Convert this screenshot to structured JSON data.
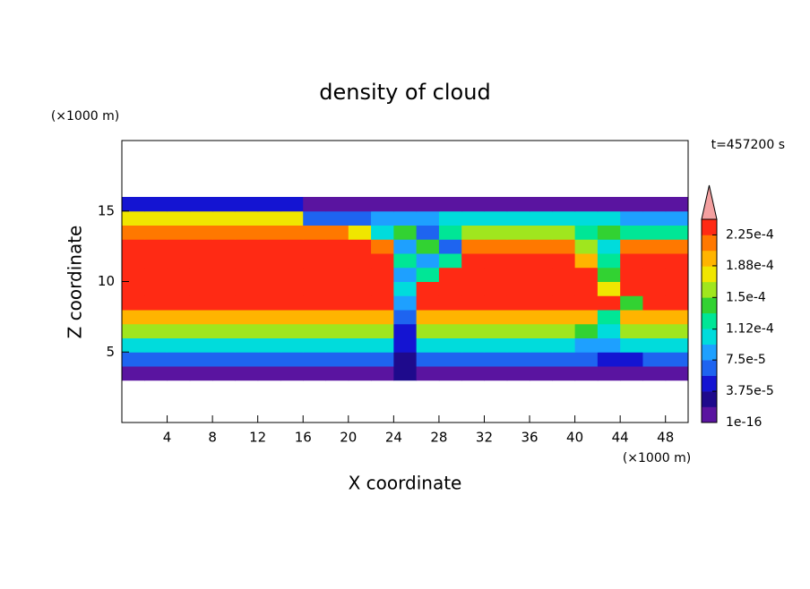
{
  "chart_data": {
    "type": "contour",
    "title": "density of cloud",
    "x_label": "X coordinate",
    "y_label": "Z coordinate",
    "x_unit": "(×1000 m)",
    "y_unit": "(×1000 m)",
    "time_label": "t=457200 s",
    "xlim": [
      0,
      50
    ],
    "ylim": [
      0,
      20
    ],
    "xticks": [
      4,
      8,
      12,
      16,
      20,
      24,
      28,
      32,
      36,
      40,
      44,
      48
    ],
    "yticks": [
      5,
      10,
      15
    ],
    "xbins": [
      0,
      2,
      4,
      6,
      8,
      10,
      12,
      14,
      16,
      18,
      20,
      22,
      24,
      26,
      28,
      30,
      32,
      34,
      36,
      38,
      40,
      42,
      44,
      46,
      48,
      50
    ],
    "ybins": [
      3,
      4,
      5,
      6,
      7,
      8,
      9,
      10,
      11,
      12,
      13,
      14,
      15,
      16
    ],
    "values": [
      [
        1e-05,
        1e-05,
        1e-05,
        1e-05,
        1e-05,
        1e-05,
        1e-05,
        1e-05,
        1e-05,
        1e-05,
        1e-05,
        1e-05,
        3e-05,
        1e-05,
        1e-05,
        1e-05,
        1e-05,
        1e-05,
        1e-05,
        1e-05,
        1e-05,
        1e-05,
        1e-05,
        1e-05,
        1e-05
      ],
      [
        6e-05,
        6e-05,
        6e-05,
        6e-05,
        6e-05,
        6e-05,
        6e-05,
        6e-05,
        6e-05,
        6e-05,
        6e-05,
        6e-05,
        3e-05,
        6e-05,
        6e-05,
        6e-05,
        6e-05,
        6e-05,
        6e-05,
        6e-05,
        6e-05,
        4e-05,
        4e-05,
        6e-05,
        6e-05
      ],
      [
        0.00011,
        0.00011,
        0.00011,
        0.00011,
        0.00011,
        0.00011,
        0.00011,
        0.00011,
        0.00011,
        0.00011,
        0.00011,
        0.00011,
        5e-05,
        0.00011,
        0.00011,
        0.00011,
        0.00011,
        0.00011,
        0.00011,
        0.00011,
        9e-05,
        9e-05,
        0.00011,
        0.00011,
        0.00011
      ],
      [
        0.00016,
        0.00016,
        0.00016,
        0.00016,
        0.00016,
        0.00016,
        0.00016,
        0.00016,
        0.00016,
        0.00016,
        0.00016,
        0.00016,
        4e-05,
        0.00016,
        0.00016,
        0.00016,
        0.00016,
        0.00016,
        0.00016,
        0.00016,
        0.00014,
        0.0001,
        0.00016,
        0.00016,
        0.00016
      ],
      [
        0.0002,
        0.0002,
        0.0002,
        0.0002,
        0.0002,
        0.0002,
        0.0002,
        0.0002,
        0.0002,
        0.0002,
        0.0002,
        0.0002,
        6e-05,
        0.0002,
        0.0002,
        0.0002,
        0.0002,
        0.0002,
        0.0002,
        0.0002,
        0.0002,
        0.00012,
        0.0002,
        0.0002,
        0.0002
      ],
      [
        0.00023,
        0.00023,
        0.00023,
        0.00023,
        0.00023,
        0.00023,
        0.00023,
        0.00023,
        0.00023,
        0.00023,
        0.00023,
        0.00023,
        8e-05,
        0.00023,
        0.00023,
        0.00023,
        0.00023,
        0.00023,
        0.00023,
        0.00023,
        0.00023,
        0.00023,
        0.00015,
        0.00023,
        0.00023
      ],
      [
        0.00024,
        0.00024,
        0.00024,
        0.00024,
        0.00024,
        0.00024,
        0.00024,
        0.00024,
        0.00024,
        0.00024,
        0.00024,
        0.00024,
        0.0001,
        0.00024,
        0.00024,
        0.00024,
        0.00024,
        0.00024,
        0.00024,
        0.00024,
        0.00024,
        0.00018,
        0.00024,
        0.00024,
        0.00024
      ],
      [
        0.00024,
        0.00024,
        0.00024,
        0.00024,
        0.00024,
        0.00024,
        0.00024,
        0.00024,
        0.00024,
        0.00024,
        0.00024,
        0.00024,
        9e-05,
        0.00012,
        0.00024,
        0.00024,
        0.00024,
        0.00024,
        0.00024,
        0.00024,
        0.00024,
        0.00014,
        0.00024,
        0.00024,
        0.00024
      ],
      [
        0.00024,
        0.00024,
        0.00024,
        0.00024,
        0.00024,
        0.00024,
        0.00024,
        0.00024,
        0.00024,
        0.00024,
        0.00024,
        0.00024,
        0.00012,
        8e-05,
        0.00013,
        0.00024,
        0.00024,
        0.00024,
        0.00024,
        0.00024,
        0.0002,
        0.00012,
        0.00024,
        0.00024,
        0.00024
      ],
      [
        0.00024,
        0.00024,
        0.00024,
        0.00024,
        0.00024,
        0.00024,
        0.00024,
        0.00024,
        0.00024,
        0.00024,
        0.00024,
        0.00022,
        8e-05,
        0.00014,
        6e-05,
        0.00022,
        0.00022,
        0.00022,
        0.00022,
        0.00022,
        0.00016,
        0.0001,
        0.00021,
        0.00021,
        0.00021
      ],
      [
        0.00022,
        0.00022,
        0.00022,
        0.00022,
        0.00022,
        0.00022,
        0.00022,
        0.00022,
        0.00022,
        0.00022,
        0.00018,
        0.0001,
        0.00014,
        6e-05,
        0.00012,
        0.00016,
        0.00016,
        0.00016,
        0.00016,
        0.00016,
        0.00012,
        0.00015,
        0.00012,
        0.00012,
        0.00012
      ],
      [
        0.00017,
        0.00017,
        0.00017,
        0.00017,
        0.00017,
        0.00017,
        0.00017,
        0.00017,
        7e-05,
        7e-05,
        7e-05,
        9e-05,
        9e-05,
        9e-05,
        0.00011,
        0.00011,
        0.00011,
        0.00011,
        0.00011,
        0.00011,
        0.00011,
        0.00011,
        8e-05,
        8e-05,
        8e-05
      ],
      [
        4e-05,
        4e-05,
        4e-05,
        4e-05,
        4e-05,
        4e-05,
        4e-05,
        4e-05,
        1e-05,
        1e-05,
        1e-05,
        1e-05,
        1e-05,
        1e-05,
        1e-05,
        1e-05,
        1e-05,
        1e-05,
        1e-05,
        1e-05,
        1e-05,
        1e-05,
        1e-05,
        1e-05,
        1e-05
      ]
    ],
    "clim": [
      1e-16,
      0.00024375
    ],
    "colors": [
      "#5a14a0",
      "#1e0a8c",
      "#1414d2",
      "#1e64f0",
      "#1ea0ff",
      "#00dcdc",
      "#00e696",
      "#32d232",
      "#a0e61e",
      "#f0e600",
      "#ffb400",
      "#ff7800",
      "#ff2a14"
    ],
    "over_color": "#f4a0a0",
    "colorbar_ticks": [
      1e-16,
      {
        "value": 3.75e-05,
        "label": "3.75e-5"
      },
      {
        "value": 7.5e-05,
        "label": "7.5e-5"
      },
      {
        "value": 0.000112,
        "label": "1.12e-4"
      },
      {
        "value": 0.00015,
        "label": "1.5e-4"
      },
      {
        "value": 0.000188,
        "label": "1.88e-4"
      },
      {
        "value": 0.000225,
        "label": "2.25e-4"
      }
    ]
  }
}
